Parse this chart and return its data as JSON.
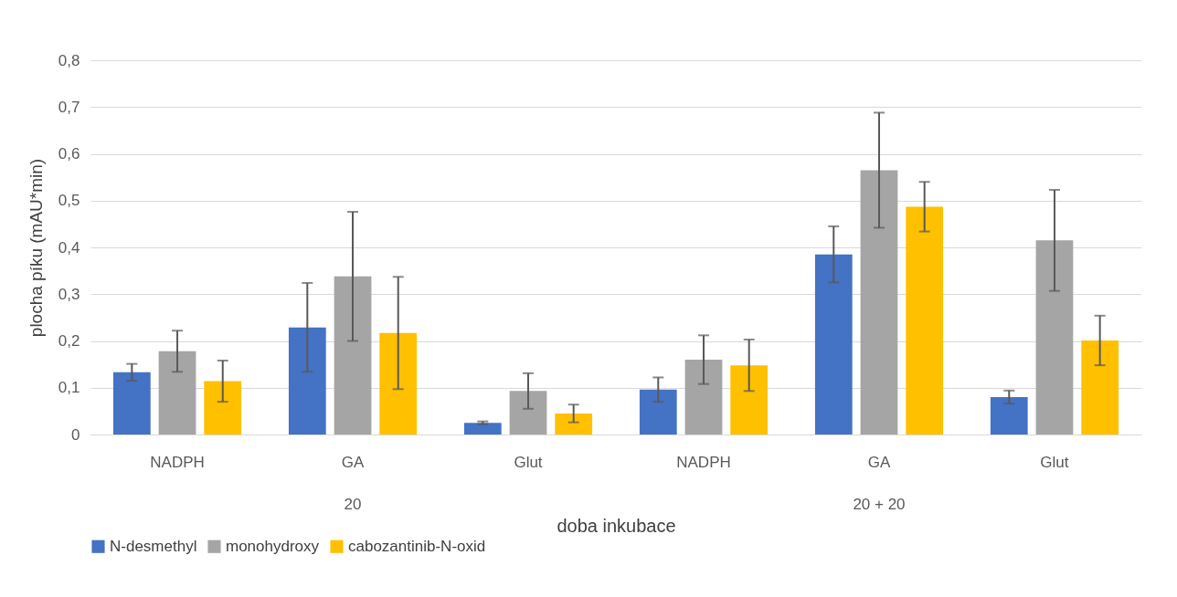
{
  "chart_data": {
    "type": "bar",
    "categories": [
      "NADPH",
      "GA",
      "Glut",
      "NADPH",
      "GA",
      "Glut"
    ],
    "series": [
      {
        "name": "N-desmethyl",
        "color": "#4472c4",
        "values": [
          0.133,
          0.229,
          0.025,
          0.096,
          0.385,
          0.08
        ],
        "errors": [
          0.018,
          0.095,
          0.003,
          0.026,
          0.06,
          0.014
        ]
      },
      {
        "name": "monohydroxy",
        "color": "#a5a5a5",
        "values": [
          0.178,
          0.338,
          0.093,
          0.16,
          0.565,
          0.415
        ],
        "errors": [
          0.044,
          0.138,
          0.038,
          0.052,
          0.123,
          0.108
        ]
      },
      {
        "name": "cabozantinib-N-oxid",
        "color": "#ffc000",
        "values": [
          0.114,
          0.217,
          0.045,
          0.148,
          0.487,
          0.201
        ],
        "errors": [
          0.044,
          0.12,
          0.019,
          0.055,
          0.053,
          0.053
        ]
      }
    ],
    "xlabel": "doba inkubace",
    "ylabel": "plocha píku (mAU*min)",
    "annotations": [
      "20",
      "20 + 20"
    ],
    "ylim": [
      0,
      0.8
    ],
    "yticks": [
      0,
      {
        "value": 0.1,
        "label": "0,1"
      },
      {
        "value": 0.2,
        "label": "0,2"
      },
      {
        "value": 0.3,
        "label": "0,3"
      },
      {
        "value": 0.4,
        "label": "0,4"
      },
      {
        "value": 0.5,
        "label": "0,5"
      },
      {
        "value": 0.6,
        "label": "0,6"
      },
      {
        "value": 0.7,
        "label": "0,7"
      },
      {
        "value": 0.8,
        "label": "0,8"
      }
    ],
    "grid": "y",
    "legend": "bottom"
  }
}
